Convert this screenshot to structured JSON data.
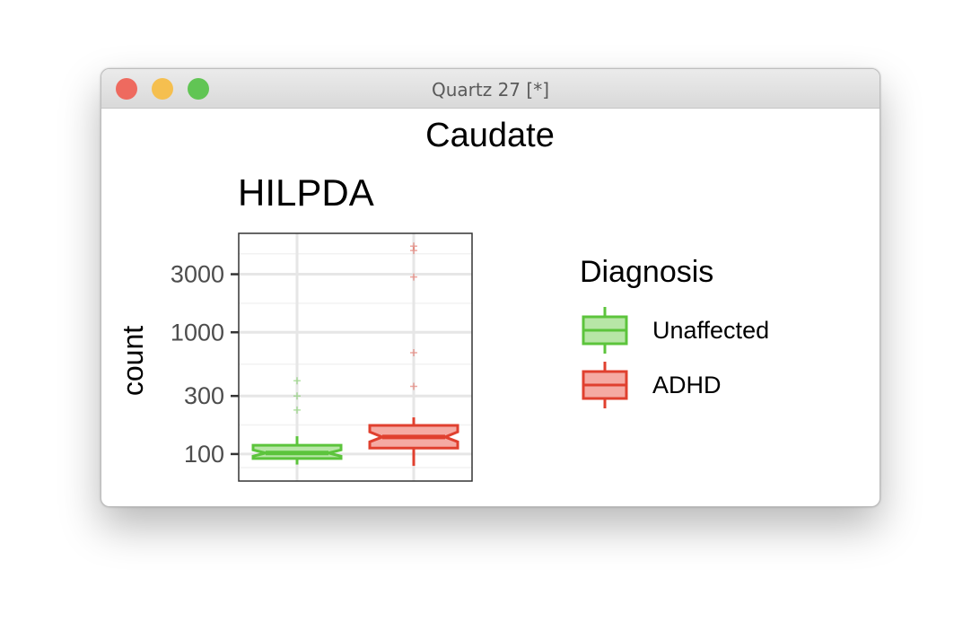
{
  "window": {
    "title": "Quartz 27 [*]",
    "buttons": {
      "close_color": "#ee6a5f",
      "minimize_color": "#f5bf4f",
      "zoom_color": "#61c554"
    }
  },
  "chart_data": {
    "type": "boxplot",
    "title": "Caudate",
    "subtitle": "HILPDA",
    "xlabel": "",
    "ylabel": "count",
    "y_scale": "log10",
    "ylim": [
      60,
      6500
    ],
    "y_ticks": [
      100,
      300,
      1000,
      3000
    ],
    "y_tick_labels": [
      "100",
      "300",
      "1000",
      "3000"
    ],
    "grid": true,
    "notched": true,
    "legend": {
      "title": "Diagnosis",
      "placement": "right",
      "entries": [
        "Unaffected",
        "ADHD"
      ]
    },
    "series": [
      {
        "name": "Unaffected",
        "color": "#5cc43c",
        "fill": "#b7e6a6",
        "min": 82,
        "q1": 92,
        "median": 102,
        "q3": 118,
        "max": 140,
        "notch_low": 96,
        "notch_high": 108,
        "outliers": [
          230,
          300,
          400
        ]
      },
      {
        "name": "ADHD",
        "color": "#e0402f",
        "fill": "#f5aaa3",
        "min": 80,
        "q1": 112,
        "median": 138,
        "q3": 172,
        "max": 200,
        "notch_low": 126,
        "notch_high": 152,
        "outliers": [
          360,
          680,
          2850,
          4700,
          5100
        ]
      }
    ]
  }
}
